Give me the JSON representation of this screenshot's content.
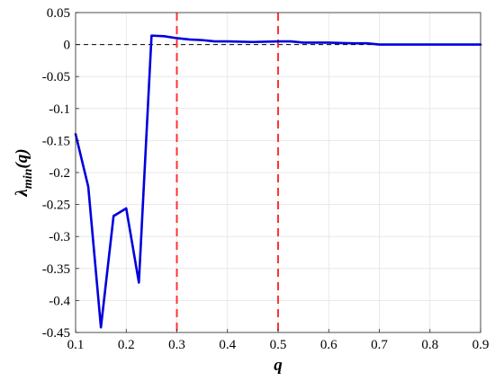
{
  "chart_data": {
    "type": "line",
    "xlabel": "q",
    "ylabel_main": "λ",
    "ylabel_sub": "min",
    "ylabel_tail": "(q)",
    "xlim": [
      0.1,
      0.9
    ],
    "ylim": [
      -0.45,
      0.05
    ],
    "xticks": [
      0.1,
      0.2,
      0.3,
      0.4,
      0.5,
      0.6,
      0.7,
      0.8,
      0.9
    ],
    "xtick_labels": [
      "0.1",
      "0.2",
      "0.3",
      "0.4",
      "0.5",
      "0.6",
      "0.7",
      "0.8",
      "0.9"
    ],
    "yticks": [
      0.05,
      0,
      -0.05,
      -0.1,
      -0.15,
      -0.2,
      -0.25,
      -0.3,
      -0.35,
      -0.4,
      -0.45
    ],
    "ytick_labels": [
      "0.05",
      "0",
      "-0.05",
      "-0.1",
      "-0.15",
      "-0.2",
      "-0.25",
      "-0.3",
      "-0.35",
      "-0.4",
      "-0.45"
    ],
    "grid": true,
    "series": [
      {
        "color": "#0000dd",
        "x": [
          0.1,
          0.125,
          0.15,
          0.175,
          0.2,
          0.225,
          0.25,
          0.275,
          0.3,
          0.325,
          0.35,
          0.375,
          0.4,
          0.45,
          0.5,
          0.525,
          0.55,
          0.6,
          0.65,
          0.675,
          0.7,
          0.75,
          0.8,
          0.85,
          0.9
        ],
        "y": [
          -0.14,
          -0.222,
          -0.442,
          -0.268,
          -0.256,
          -0.372,
          0.014,
          0.013,
          0.01,
          0.008,
          0.007,
          0.005,
          0.005,
          0.004,
          0.005,
          0.005,
          0.003,
          0.003,
          0.002,
          0.002,
          0.0,
          0.0,
          0.0,
          0.0,
          0.0
        ]
      }
    ],
    "reference_lines": {
      "horizontal_zero": {
        "y": 0,
        "color": "#000000"
      },
      "vertical": [
        {
          "x": 0.3,
          "color": "#ff3333"
        },
        {
          "x": 0.5,
          "color": "#ff3333"
        }
      ]
    }
  }
}
